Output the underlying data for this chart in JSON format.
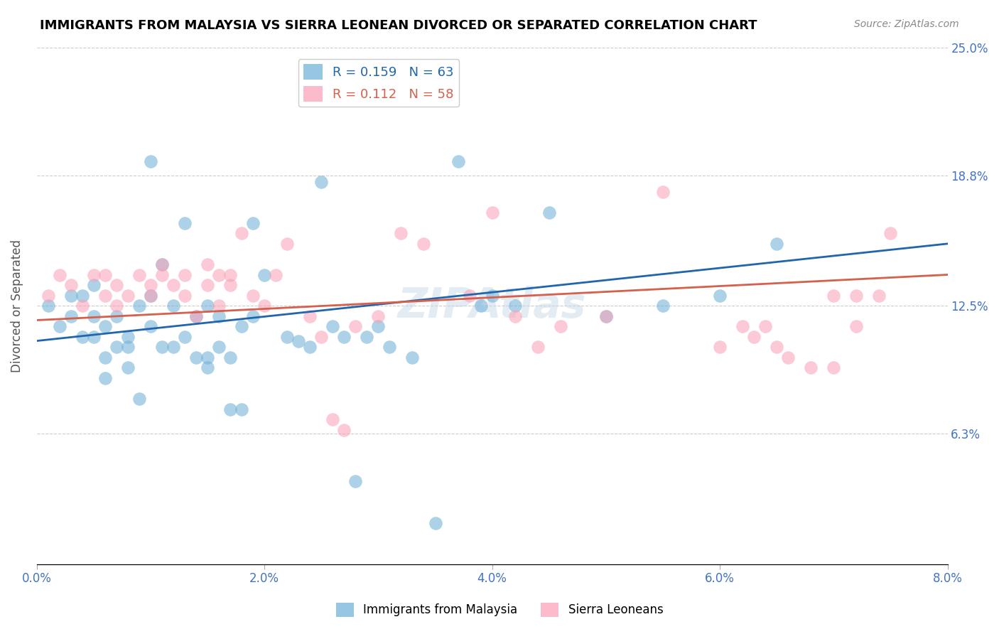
{
  "title": "IMMIGRANTS FROM MALAYSIA VS SIERRA LEONEAN DIVORCED OR SEPARATED CORRELATION CHART",
  "source": "Source: ZipAtlas.com",
  "ylabel": "Divorced or Separated",
  "x_min": 0.0,
  "x_max": 0.08,
  "y_min": 0.0,
  "y_max": 0.25,
  "x_ticks": [
    0.0,
    0.02,
    0.04,
    0.06,
    0.08
  ],
  "x_tick_labels": [
    "0.0%",
    "2.0%",
    "4.0%",
    "6.0%",
    "8.0%"
  ],
  "y_ticks": [
    0.0,
    0.063,
    0.125,
    0.188,
    0.25
  ],
  "y_tick_labels": [
    "",
    "6.3%",
    "12.5%",
    "18.8%",
    "25.0%"
  ],
  "legend_r1": "R = 0.159",
  "legend_n1": "N = 63",
  "legend_r2": "R = 0.112",
  "legend_n2": "N = 58",
  "color_blue": "#6baed6",
  "color_pink": "#fa9fb5",
  "line_color_blue": "#2166ac",
  "line_color_pink": "#d6604d",
  "legend_text_color_blue": "#2166ac",
  "legend_text_color_pink": "#d6604d",
  "watermark": "ZIPAtlas",
  "blue_scatter_x": [
    0.001,
    0.002,
    0.003,
    0.003,
    0.004,
    0.004,
    0.005,
    0.005,
    0.005,
    0.006,
    0.006,
    0.006,
    0.007,
    0.007,
    0.008,
    0.008,
    0.008,
    0.009,
    0.009,
    0.01,
    0.01,
    0.01,
    0.011,
    0.011,
    0.012,
    0.012,
    0.013,
    0.013,
    0.014,
    0.014,
    0.015,
    0.015,
    0.015,
    0.016,
    0.016,
    0.017,
    0.017,
    0.018,
    0.018,
    0.019,
    0.019,
    0.02,
    0.022,
    0.023,
    0.024,
    0.025,
    0.026,
    0.027,
    0.028,
    0.029,
    0.03,
    0.031,
    0.033,
    0.035,
    0.037,
    0.039,
    0.04,
    0.042,
    0.045,
    0.05,
    0.055,
    0.06,
    0.065
  ],
  "blue_scatter_y": [
    0.125,
    0.115,
    0.13,
    0.12,
    0.11,
    0.13,
    0.11,
    0.12,
    0.135,
    0.09,
    0.1,
    0.115,
    0.105,
    0.12,
    0.095,
    0.11,
    0.105,
    0.08,
    0.125,
    0.115,
    0.13,
    0.195,
    0.105,
    0.145,
    0.105,
    0.125,
    0.11,
    0.165,
    0.1,
    0.12,
    0.095,
    0.1,
    0.125,
    0.105,
    0.12,
    0.075,
    0.1,
    0.075,
    0.115,
    0.12,
    0.165,
    0.14,
    0.11,
    0.108,
    0.105,
    0.185,
    0.115,
    0.11,
    0.04,
    0.11,
    0.115,
    0.105,
    0.1,
    0.02,
    0.195,
    0.125,
    0.13,
    0.125,
    0.17,
    0.12,
    0.125,
    0.13,
    0.155
  ],
  "blue_line_x": [
    0.0,
    0.08
  ],
  "blue_line_y": [
    0.108,
    0.155
  ],
  "pink_scatter_x": [
    0.001,
    0.002,
    0.003,
    0.004,
    0.005,
    0.006,
    0.006,
    0.007,
    0.007,
    0.008,
    0.009,
    0.01,
    0.01,
    0.011,
    0.011,
    0.012,
    0.013,
    0.013,
    0.014,
    0.015,
    0.015,
    0.016,
    0.016,
    0.017,
    0.017,
    0.018,
    0.019,
    0.02,
    0.021,
    0.022,
    0.024,
    0.025,
    0.026,
    0.027,
    0.028,
    0.03,
    0.032,
    0.034,
    0.038,
    0.04,
    0.042,
    0.044,
    0.046,
    0.05,
    0.055,
    0.06,
    0.065,
    0.07,
    0.072,
    0.075,
    0.062,
    0.063,
    0.064,
    0.066,
    0.068,
    0.07,
    0.072,
    0.074
  ],
  "pink_scatter_y": [
    0.13,
    0.14,
    0.135,
    0.125,
    0.14,
    0.13,
    0.14,
    0.125,
    0.135,
    0.13,
    0.14,
    0.13,
    0.135,
    0.14,
    0.145,
    0.135,
    0.14,
    0.13,
    0.12,
    0.135,
    0.145,
    0.125,
    0.14,
    0.135,
    0.14,
    0.16,
    0.13,
    0.125,
    0.14,
    0.155,
    0.12,
    0.11,
    0.07,
    0.065,
    0.115,
    0.12,
    0.16,
    0.155,
    0.13,
    0.17,
    0.12,
    0.105,
    0.115,
    0.12,
    0.18,
    0.105,
    0.105,
    0.095,
    0.115,
    0.16,
    0.115,
    0.11,
    0.115,
    0.1,
    0.095,
    0.13,
    0.13,
    0.13
  ],
  "pink_line_x": [
    0.0,
    0.08
  ],
  "pink_line_y": [
    0.118,
    0.14
  ],
  "background_color": "#ffffff",
  "grid_color": "#cccccc",
  "tick_label_color": "#4472c4",
  "ylabel_color": "#555555"
}
